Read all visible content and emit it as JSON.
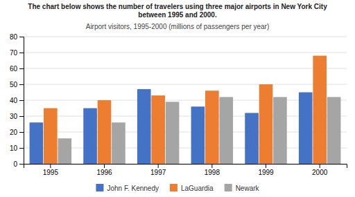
{
  "chart_data": {
    "type": "bar",
    "title": [
      "The chart below shows the number of travelers using three major airports in New York City",
      "between 1995 and 2000."
    ],
    "subtitle": "Airport visitors, 1995-2000 (millions of passengers per year)",
    "categories": [
      "1995",
      "1996",
      "1997",
      "1998",
      "1999",
      "2000"
    ],
    "series": [
      {
        "name": "John F. Kennedy",
        "color": "#4472C4",
        "values": [
          26,
          35,
          47,
          36,
          32,
          45
        ]
      },
      {
        "name": "LaGuardia",
        "color": "#ED7D31",
        "values": [
          35,
          40,
          43,
          46,
          50,
          68
        ]
      },
      {
        "name": "Newark",
        "color": "#A5A5A5",
        "values": [
          16,
          26,
          39,
          42,
          42,
          42
        ]
      }
    ],
    "ylim": [
      0,
      80
    ],
    "yticks": [
      0,
      10,
      20,
      30,
      40,
      50,
      60,
      70,
      80
    ],
    "grid": true,
    "legend": "bottom"
  }
}
